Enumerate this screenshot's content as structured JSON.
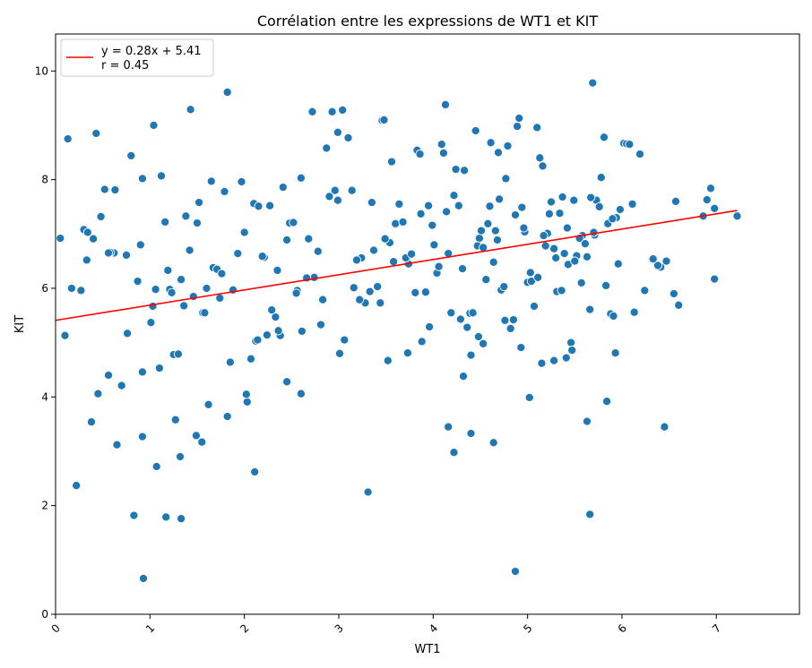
{
  "chart_data": {
    "type": "scatter",
    "title": "Corrélation entre les expressions de WT1 et KIT",
    "xlabel": "WT1",
    "ylabel": "KIT",
    "xlim": [
      0,
      7.88
    ],
    "ylim": [
      0,
      10.68
    ],
    "xticks": [
      0,
      1,
      2,
      3,
      4,
      5,
      6,
      7
    ],
    "xtick_labels": [
      "0",
      "1",
      "2",
      "3",
      "4",
      "5",
      "6",
      "7"
    ],
    "xtick_rotation": 45,
    "yticks": [
      0,
      2,
      4,
      6,
      8,
      10
    ],
    "ytick_labels": [
      "0",
      "2",
      "4",
      "6",
      "8",
      "10"
    ],
    "grid": false,
    "legend": {
      "placement": "upper-left",
      "entries": [
        "y = 0.28x + 5.41",
        "r = 0.45"
      ]
    },
    "point_color": "#1f77b4",
    "point_edge_color": "#ffffff",
    "line_color": "#ff0000",
    "regression": {
      "slope": 0.28,
      "intercept": 5.41,
      "x_range": [
        0,
        7.22
      ]
    },
    "x": [
      0.05,
      0.1,
      0.13,
      0.22,
      0.3,
      0.33,
      0.38,
      0.43,
      0.45,
      0.52,
      0.56,
      0.63,
      0.65,
      0.76,
      0.8,
      0.9,
      0.92,
      0.93,
      1.01,
      1.04,
      1.1,
      1.19,
      1.25,
      1.33,
      1.38,
      1.43,
      1.49,
      1.52,
      1.62,
      1.67,
      1.74,
      1.79,
      1.82,
      1.93,
      2.03,
      2.1,
      2.15,
      2.21,
      2.27,
      2.33,
      2.41,
      2.48,
      2.56,
      2.6,
      2.68,
      2.74,
      2.83,
      2.93,
      2.96,
      3.04,
      3.1,
      3.16,
      3.24,
      3.33,
      3.41,
      3.46,
      3.54,
      3.6,
      3.68,
      3.74,
      3.81,
      3.87,
      3.95,
      4.01,
      4.09,
      4.14,
      4.22,
      4.29,
      4.33,
      4.39,
      4.45,
      4.49,
      4.56,
      4.61,
      4.66,
      4.72,
      4.79,
      4.87,
      4.91,
      4.97,
      5.03,
      5.1,
      5.16,
      5.21,
      5.28,
      5.34,
      5.39,
      5.46,
      5.52,
      5.58,
      5.66,
      5.73,
      5.81,
      5.88,
      5.94,
      6.02,
      6.11,
      6.19,
      6.33,
      6.41,
      6.57,
      6.86,
      6.94,
      6.98,
      7.22,
      0.34,
      0.48,
      0.62,
      0.75,
      0.92,
      1.06,
      1.12,
      1.21,
      1.3,
      1.42,
      1.5,
      1.6,
      1.71,
      1.85,
      1.97,
      2.02,
      2.19,
      2.29,
      2.38,
      2.52,
      2.61,
      2.72,
      2.87,
      2.99,
      3.06,
      3.19,
      3.28,
      3.37,
      3.49,
      3.58,
      3.71,
      3.83,
      3.92,
      4.04,
      4.11,
      4.19,
      4.27,
      4.36,
      4.42,
      4.51,
      4.58,
      4.64,
      4.7,
      4.77,
      4.85,
      4.94,
      5.0,
      5.07,
      5.13,
      5.19,
      5.25,
      5.31,
      5.37,
      5.43,
      5.49,
      5.55,
      5.61,
      5.67,
      5.71,
      5.78,
      5.85,
      5.91,
      5.98,
      6.05,
      6.38,
      6.55,
      0.4,
      0.58,
      0.7,
      0.87,
      1.03,
      1.16,
      1.27,
      1.36,
      1.46,
      1.56,
      1.65,
      1.76,
      1.88,
      2.0,
      2.12,
      2.24,
      2.35,
      2.45,
      2.55,
      2.66,
      2.78,
      2.9,
      3.01,
      3.14,
      3.22,
      3.35,
      3.44,
      3.56,
      3.64,
      3.77,
      3.86,
      3.99,
      4.06,
      4.16,
      4.24,
      4.31,
      4.4,
      4.47,
      4.53,
      4.6,
      4.68,
      4.75,
      4.82,
      4.89,
      4.96,
      5.04,
      5.11,
      5.17,
      5.23,
      5.3,
      5.36,
      5.42,
      5.5,
      5.57,
      5.63,
      5.7,
      5.76,
      5.83,
      5.9,
      5.96,
      6.08,
      6.47,
      6.98,
      1.07,
      1.17,
      1.33,
      2.11,
      3.31,
      4.22,
      4.4,
      4.64,
      4.87,
      5.66,
      0.92,
      1.82,
      2.99,
      4.16,
      5.02,
      5.63,
      6.45,
      3.48,
      4.13,
      4.69,
      1.32,
      0.27,
      0.56,
      2.45,
      3.88,
      4.53,
      5.15,
      5.93,
      6.6,
      1.58,
      2.14,
      2.6,
      3.73,
      4.32,
      4.76,
      5.28,
      5.47,
      5.84,
      6.13,
      0.17,
      0.83,
      1.23,
      1.55,
      2.07,
      2.36,
      2.81,
      3.52,
      3.96,
      4.48,
      4.93,
      5.41,
      5.69,
      6.24,
      6.9
    ],
    "y": [
      6.92,
      5.13,
      8.75,
      2.37,
      7.08,
      6.52,
      3.54,
      8.85,
      4.06,
      7.82,
      4.4,
      7.81,
      3.12,
      5.17,
      8.44,
      6.8,
      8.02,
      0.66,
      5.37,
      9.0,
      4.53,
      6.33,
      4.78,
      6.16,
      7.33,
      9.29,
      3.29,
      7.58,
      3.86,
      6.38,
      5.82,
      7.78,
      9.61,
      6.64,
      3.91,
      7.56,
      7.51,
      6.57,
      7.52,
      5.47,
      7.86,
      7.2,
      5.96,
      8.03,
      6.91,
      6.2,
      5.79,
      9.25,
      7.8,
      9.28,
      8.77,
      6.01,
      6.56,
      5.94,
      6.03,
      9.09,
      6.84,
      7.19,
      7.22,
      6.45,
      5.92,
      7.37,
      7.52,
      6.8,
      8.65,
      7.41,
      7.71,
      5.43,
      8.17,
      5.54,
      8.9,
      6.92,
      6.16,
      8.68,
      7.06,
      5.97,
      8.62,
      7.35,
      9.13,
      7.04,
      6.29,
      8.96,
      8.25,
      7.01,
      6.73,
      7.38,
      6.64,
      5.0,
      6.6,
      6.97,
      5.61,
      7.62,
      8.78,
      5.53,
      7.3,
      8.67,
      7.55,
      8.47,
      6.54,
      6.39,
      7.6,
      7.33,
      7.84,
      7.47,
      7.33,
      7.03,
      7.32,
      6.65,
      6.61,
      4.46,
      5.98,
      8.07,
      5.98,
      4.79,
      6.7,
      7.2,
      6.0,
      6.35,
      4.64,
      7.96,
      4.05,
      6.59,
      5.6,
      5.13,
      7.21,
      5.21,
      9.25,
      8.58,
      7.62,
      5.05,
      6.52,
      5.73,
      6.7,
      6.91,
      6.49,
      6.56,
      8.54,
      5.93,
      6.28,
      8.49,
      5.55,
      7.52,
      5.28,
      5.55,
      7.06,
      7.19,
      6.48,
      7.64,
      8.02,
      5.42,
      7.49,
      6.11,
      5.67,
      8.4,
      6.78,
      7.59,
      5.94,
      7.68,
      6.44,
      7.62,
      6.92,
      6.82,
      7.67,
      6.98,
      8.04,
      7.19,
      5.49,
      7.45,
      8.66,
      6.42,
      5.9,
      6.91,
      6.66,
      4.21,
      6.13,
      5.67,
      7.22,
      3.58,
      5.68,
      5.85,
      5.55,
      7.97,
      6.27,
      5.97,
      7.03,
      5.03,
      5.14,
      6.33,
      4.28,
      5.91,
      6.19,
      6.68,
      7.69,
      4.8,
      7.8,
      5.79,
      7.58,
      5.73,
      8.33,
      7.55,
      6.63,
      8.47,
      7.16,
      6.4,
      6.64,
      8.19,
      6.36,
      4.77,
      6.78,
      6.75,
      7.51,
      6.89,
      6.03,
      5.26,
      8.98,
      7.11,
      6.13,
      6.2,
      6.97,
      7.37,
      6.56,
      5.96,
      7.11,
      6.5,
      6.1,
      6.58,
      7.03,
      7.5,
      6.05,
      7.28,
      6.45,
      8.65,
      6.5,
      6.17,
      2.72,
      1.79,
      1.76,
      2.62,
      2.25,
      2.98,
      3.33,
      3.16,
      0.79,
      1.84,
      3.27,
      3.64,
      8.87,
      3.45,
      3.99,
      3.55,
      3.45,
      9.1,
      9.38,
      8.5,
      2.9,
      5.96,
      6.65,
      6.89,
      5.02,
      4.98,
      4.62,
      4.81,
      5.69,
      5.55,
      5.05,
      4.06,
      4.81,
      4.38,
      5.41,
      4.67,
      4.86,
      3.92,
      5.56,
      6.0,
      1.82,
      5.92,
      3.17,
      4.7,
      5.22,
      5.33,
      4.67,
      5.29,
      5.11,
      4.91,
      4.72,
      9.78,
      5.96,
      7.63
    ]
  }
}
